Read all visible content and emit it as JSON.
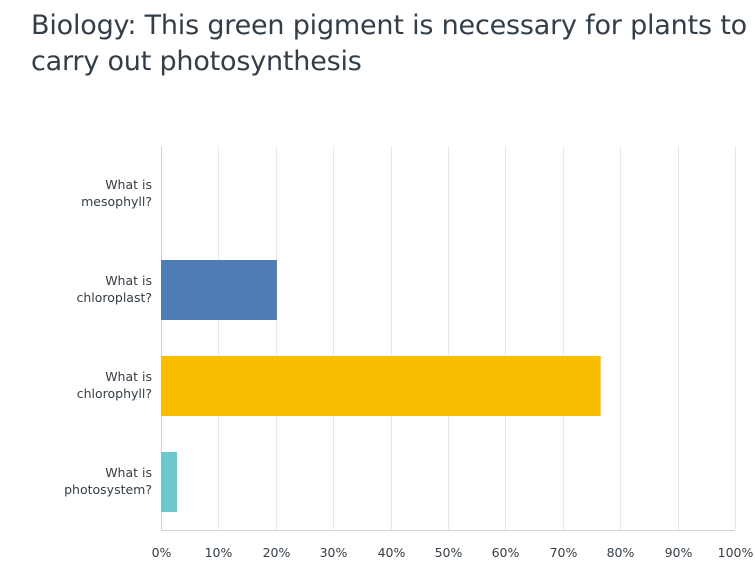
{
  "chart_data": {
    "type": "bar",
    "orientation": "horizontal",
    "title": "Biology: This green pigment is necessary for plants to carry out photosynthesis",
    "categories": [
      [
        "What is",
        "mesophyll?"
      ],
      [
        "What is",
        "chloroplast?"
      ],
      [
        "What is",
        "chlorophyll?"
      ],
      [
        "What is",
        "photosystem?"
      ]
    ],
    "values": [
      0,
      20.2,
      76.6,
      2.8
    ],
    "colors": [
      "#507cb6",
      "#507cb6",
      "#f9be00",
      "#6bc8cd"
    ],
    "xlim": [
      0,
      100
    ],
    "x_ticks": [
      "0%",
      "10%",
      "20%",
      "30%",
      "40%",
      "50%",
      "60%",
      "70%",
      "80%",
      "90%",
      "100%"
    ],
    "grid": true,
    "legend": "none"
  }
}
